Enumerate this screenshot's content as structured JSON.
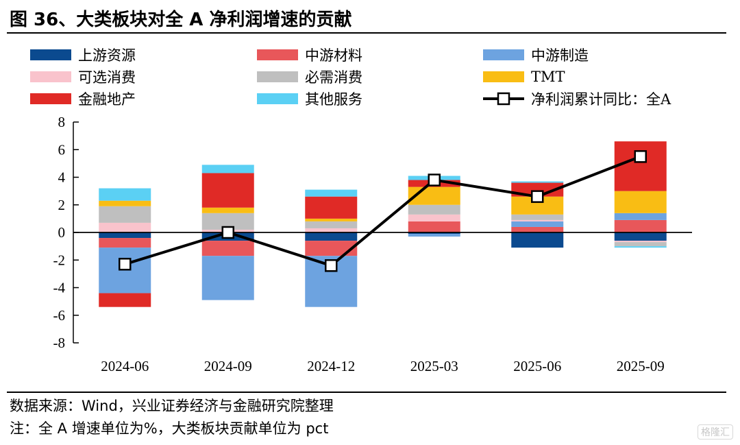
{
  "title": "图 36、大类板块对全 A 净利润增速的贡献",
  "source": "数据来源：Wind，兴业证券经济与金融研究院整理",
  "note": "注：全 A 增速单位为%，大类板块贡献单位为 pct",
  "watermark": "格隆汇",
  "chart_data": {
    "type": "bar",
    "stacked": true,
    "categories": [
      "2024-06",
      "2024-09",
      "2024-12",
      "2025-03",
      "2025-06",
      "2025-09"
    ],
    "ylim": [
      -8,
      8
    ],
    "yticks": [
      8,
      6,
      4,
      2,
      0,
      -2,
      -4,
      -6,
      -8
    ],
    "legend": "top",
    "series": [
      {
        "name": "上游资源",
        "color": "#0b4a8f",
        "values": [
          -0.4,
          -0.6,
          -0.6,
          -0.1,
          -1.1,
          -0.6
        ]
      },
      {
        "name": "中游材料",
        "color": "#e8575a",
        "values": [
          -0.7,
          -1.1,
          -1.1,
          0.8,
          0.4,
          0.9
        ]
      },
      {
        "name": "中游制造",
        "color": "#6da3e0",
        "values": [
          -3.3,
          -3.2,
          -3.7,
          -0.2,
          0.4,
          0.5
        ]
      },
      {
        "name": "可选消费",
        "color": "#f9c3cc",
        "values": [
          0.7,
          0.2,
          0.3,
          0.5,
          0.1,
          -0.1
        ]
      },
      {
        "name": "必需消费",
        "color": "#bfbfbf",
        "values": [
          1.2,
          1.2,
          0.5,
          0.7,
          0.4,
          -0.3
        ]
      },
      {
        "name": "TMT",
        "color": "#f9bd14",
        "values": [
          0.4,
          0.4,
          0.2,
          1.3,
          1.3,
          1.6
        ]
      },
      {
        "name": "金融地产",
        "color": "#e02a26",
        "values": [
          -1.0,
          2.5,
          1.6,
          0.5,
          1.0,
          3.6
        ]
      },
      {
        "name": "其他服务",
        "color": "#5bd0f4",
        "values": [
          0.9,
          0.6,
          0.5,
          0.3,
          0.1,
          -0.1
        ]
      }
    ],
    "line": {
      "name": "净利润累计同比：全A",
      "color": "#000000",
      "values": [
        -2.3,
        0.0,
        -2.4,
        3.8,
        2.6,
        5.5
      ]
    }
  }
}
